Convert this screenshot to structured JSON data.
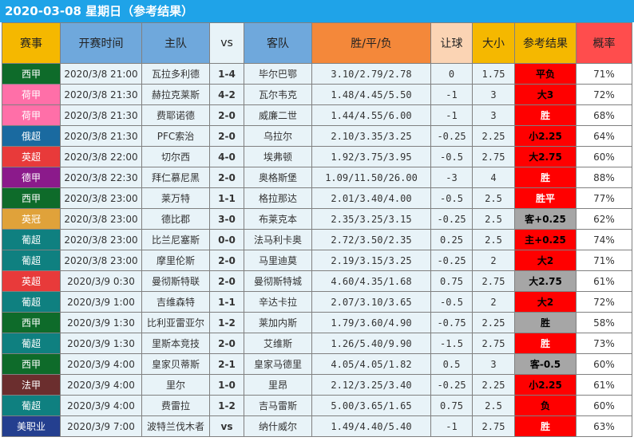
{
  "title": "2020-03-08  星期日（参考结果）",
  "colors": {
    "title_bar": "#1fa3e8",
    "header": [
      "#f5b800",
      "#6fa8dc",
      "#6fa8dc",
      "#e8f3f8",
      "#6fa8dc",
      "#f4883a",
      "#fbd4b4",
      "#f5b800",
      "#f5b800",
      "#ff4d4d"
    ],
    "ref_red": "#ff0000",
    "ref_gray": "#a6a6a6",
    "prob_red": "#e11d48",
    "hcp_green": "#16a34a"
  },
  "headers": [
    "赛事",
    "开赛时间",
    "主队",
    "vs",
    "客队",
    "胜/平/负",
    "让球",
    "大小",
    "参考结果",
    "概率"
  ],
  "rows": [
    {
      "league": "西甲",
      "league_color": "#0e6b2a",
      "time": "2020/3/8 21:00",
      "home": "瓦拉多利德",
      "score": "1-4",
      "away": "毕尔巴鄂",
      "odds": "3.10/2.79/2.78",
      "hcp": "0",
      "hcp_color": "black",
      "ou": "1.75",
      "ref": "平负",
      "ref_bg": "#ff0000",
      "ref_fg": "#000000",
      "prob": "71%",
      "prob_color": "red"
    },
    {
      "league": "荷甲",
      "league_color": "#ff6fa8",
      "time": "2020/3/8 21:30",
      "home": "赫拉克莱斯",
      "score": "4-2",
      "away": "瓦尔韦克",
      "odds": "1.48/4.45/5.50",
      "hcp": "-1",
      "hcp_color": "green",
      "ou": "3",
      "ref": "大3",
      "ref_bg": "#ff0000",
      "ref_fg": "#000000",
      "prob": "72%",
      "prob_color": "red"
    },
    {
      "league": "荷甲",
      "league_color": "#ff6fa8",
      "time": "2020/3/8 21:30",
      "home": "费耶诺德",
      "score": "2-0",
      "away": "威廉二世",
      "odds": "1.44/4.55/6.00",
      "hcp": "-1",
      "hcp_color": "green",
      "ou": "3",
      "ref": "胜",
      "ref_bg": "#ff0000",
      "ref_fg": "#ffffff",
      "prob": "68%",
      "prob_color": "red"
    },
    {
      "league": "俄超",
      "league_color": "#1a6aa0",
      "time": "2020/3/8 21:30",
      "home": "PFC索治",
      "score": "2-0",
      "away": "乌拉尔",
      "odds": "2.10/3.35/3.25",
      "hcp": "-0.25",
      "hcp_color": "green",
      "ou": "2.25",
      "ref": "小2.25",
      "ref_bg": "#ff0000",
      "ref_fg": "#000000",
      "prob": "64%",
      "prob_color": "black"
    },
    {
      "league": "英超",
      "league_color": "#e83a3a",
      "time": "2020/3/8 22:00",
      "home": "切尔西",
      "score": "4-0",
      "away": "埃弗顿",
      "odds": "1.92/3.75/3.95",
      "hcp": "-0.5",
      "hcp_color": "green",
      "ou": "2.75",
      "ref": "大2.75",
      "ref_bg": "#ff0000",
      "ref_fg": "#000000",
      "prob": "60%",
      "prob_color": "black"
    },
    {
      "league": "德甲",
      "league_color": "#8b1a8b",
      "time": "2020/3/8 22:30",
      "home": "拜仁慕尼黑",
      "score": "2-0",
      "away": "奥格斯堡",
      "odds": "1.09/11.50/26.00",
      "hcp": "-3",
      "hcp_color": "green",
      "ou": "4",
      "ref": "胜",
      "ref_bg": "#ff0000",
      "ref_fg": "#ffffff",
      "prob": "88%",
      "prob_color": "red"
    },
    {
      "league": "西甲",
      "league_color": "#0e6b2a",
      "time": "2020/3/8 23:00",
      "home": "莱万特",
      "score": "1-1",
      "away": "格拉那达",
      "odds": "2.01/3.40/4.00",
      "hcp": "-0.5",
      "hcp_color": "green",
      "ou": "2.5",
      "ref": "胜平",
      "ref_bg": "#ff0000",
      "ref_fg": "#ffffff",
      "prob": "77%",
      "prob_color": "red"
    },
    {
      "league": "英冠",
      "league_color": "#e0a23a",
      "time": "2020/3/8 23:00",
      "home": "德比郡",
      "score": "3-0",
      "away": "布莱克本",
      "odds": "2.35/3.25/3.15",
      "hcp": "-0.25",
      "hcp_color": "green",
      "ou": "2.5",
      "ref": "客+0.25",
      "ref_bg": "#a6a6a6",
      "ref_fg": "#000000",
      "prob": "62%",
      "prob_color": "black"
    },
    {
      "league": "葡超",
      "league_color": "#0f8080",
      "time": "2020/3/8 23:00",
      "home": "比兰尼塞斯",
      "score": "0-0",
      "away": "法马利卡奥",
      "odds": "2.72/3.50/2.35",
      "hcp": "0.25",
      "hcp_color": "black",
      "ou": "2.5",
      "ref": "主+0.25",
      "ref_bg": "#ff0000",
      "ref_fg": "#000000",
      "prob": "74%",
      "prob_color": "red"
    },
    {
      "league": "葡超",
      "league_color": "#0f8080",
      "time": "2020/3/8 23:00",
      "home": "摩里伦斯",
      "score": "2-0",
      "away": "马里迪莫",
      "odds": "2.19/3.15/3.25",
      "hcp": "-0.25",
      "hcp_color": "green",
      "ou": "2",
      "ref": "大2",
      "ref_bg": "#ff0000",
      "ref_fg": "#000000",
      "prob": "71%",
      "prob_color": "red"
    },
    {
      "league": "英超",
      "league_color": "#e83a3a",
      "time": "2020/3/9 0:30",
      "home": "曼彻斯特联",
      "score": "2-0",
      "away": "曼彻斯特城",
      "odds": "4.60/4.35/1.68",
      "hcp": "0.75",
      "hcp_color": "black",
      "ou": "2.75",
      "ref": "大2.75",
      "ref_bg": "#a6a6a6",
      "ref_fg": "#000000",
      "prob": "61%",
      "prob_color": "black"
    },
    {
      "league": "葡超",
      "league_color": "#0f8080",
      "time": "2020/3/9 1:00",
      "home": "吉维森特",
      "score": "1-1",
      "away": "辛达卡拉",
      "odds": "2.07/3.10/3.65",
      "hcp": "-0.5",
      "hcp_color": "green",
      "ou": "2",
      "ref": "大2",
      "ref_bg": "#ff0000",
      "ref_fg": "#000000",
      "prob": "72%",
      "prob_color": "red"
    },
    {
      "league": "西甲",
      "league_color": "#0e6b2a",
      "time": "2020/3/9 1:30",
      "home": "比利亚雷亚尔",
      "score": "1-2",
      "away": "莱加内斯",
      "odds": "1.79/3.60/4.90",
      "hcp": "-0.75",
      "hcp_color": "green",
      "ou": "2.25",
      "ref": "胜",
      "ref_bg": "#a6a6a6",
      "ref_fg": "#000000",
      "prob": "58%",
      "prob_color": "black"
    },
    {
      "league": "葡超",
      "league_color": "#0f8080",
      "time": "2020/3/9 1:30",
      "home": "里斯本竞技",
      "score": "2-0",
      "away": "艾维斯",
      "odds": "1.26/5.40/9.90",
      "hcp": "-1.5",
      "hcp_color": "green",
      "ou": "2.75",
      "ref": "胜",
      "ref_bg": "#ff0000",
      "ref_fg": "#ffffff",
      "prob": "73%",
      "prob_color": "red"
    },
    {
      "league": "西甲",
      "league_color": "#0e6b2a",
      "time": "2020/3/9 4:00",
      "home": "皇家贝蒂斯",
      "score": "2-1",
      "away": "皇家马德里",
      "odds": "4.05/4.05/1.82",
      "hcp": "0.5",
      "hcp_color": "black",
      "ou": "3",
      "ref": "客-0.5",
      "ref_bg": "#a6a6a6",
      "ref_fg": "#000000",
      "prob": "60%",
      "prob_color": "black"
    },
    {
      "league": "法甲",
      "league_color": "#6b2e2e",
      "time": "2020/3/9 4:00",
      "home": "里尔",
      "score": "1-0",
      "away": "里昂",
      "odds": "2.12/3.25/3.40",
      "hcp": "-0.25",
      "hcp_color": "green",
      "ou": "2.25",
      "ref": "小2.25",
      "ref_bg": "#ff0000",
      "ref_fg": "#000000",
      "prob": "61%",
      "prob_color": "black"
    },
    {
      "league": "葡超",
      "league_color": "#0f8080",
      "time": "2020/3/9 4:00",
      "home": "费雷拉",
      "score": "1-2",
      "away": "吉马雷斯",
      "odds": "5.00/3.65/1.65",
      "hcp": "0.75",
      "hcp_color": "black",
      "ou": "2.5",
      "ref": "负",
      "ref_bg": "#ff0000",
      "ref_fg": "#000000",
      "prob": "60%",
      "prob_color": "black"
    },
    {
      "league": "美职业",
      "league_color": "#243f8f",
      "time": "2020/3/9 7:00",
      "home": "波特兰伐木者",
      "score": "vs",
      "away": "纳什威尔",
      "odds": "1.49/4.40/5.40",
      "hcp": "-1",
      "hcp_color": "green",
      "ou": "2.75",
      "ref": "胜",
      "ref_bg": "#ff0000",
      "ref_fg": "#ffffff",
      "prob": "63%",
      "prob_color": "black"
    }
  ]
}
